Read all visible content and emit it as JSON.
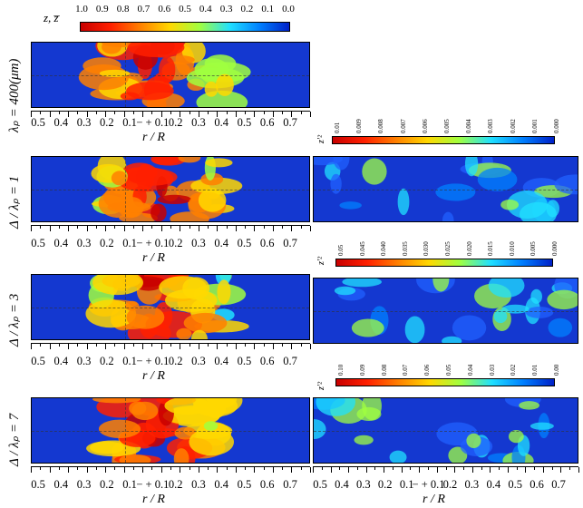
{
  "colorbars": {
    "main": {
      "label": "z, z̅",
      "ticks": [
        "1.0",
        "0.9",
        "0.8",
        "0.7",
        "0.6",
        "0.5",
        "0.4",
        "0.3",
        "0.2",
        "0.1",
        "0.0"
      ]
    },
    "panel1": {
      "label": "z′²",
      "ticks": [
        "0.01",
        "0.009",
        "0.008",
        "0.007",
        "0.006",
        "0.005",
        "0.004",
        "0.003",
        "0.002",
        "0.001",
        "0.000"
      ]
    },
    "panel2": {
      "label": "z′²",
      "ticks": [
        "0.05",
        "0.045",
        "0.040",
        "0.035",
        "0.030",
        "0.025",
        "0.020",
        "0.015",
        "0.010",
        "0.005",
        "0.000"
      ]
    },
    "panel3": {
      "label": "z′²",
      "ticks": [
        "0.10",
        "0.09",
        "0.08",
        "0.07",
        "0.06",
        "0.05",
        "0.04",
        "0.03",
        "0.02",
        "0.01",
        "0.00"
      ]
    },
    "colors": [
      "#c80000",
      "#ff2000",
      "#ff8000",
      "#ffd800",
      "#a0ff40",
      "#20e0ff",
      "#0080ff",
      "#0020c8"
    ]
  },
  "rows": [
    {
      "label": "λₚ = 400(μm)"
    },
    {
      "label": "Δ / λₚ = 1"
    },
    {
      "label": "Δ / λₚ = 3"
    },
    {
      "label": "Δ / λₚ = 7"
    }
  ],
  "axis": {
    "ticks": [
      "0.5",
      "0.4",
      "0.3",
      "0.2",
      "0.1",
      "− + 0.1",
      "0.2",
      "0.3",
      "0.4",
      "0.5",
      "0.6",
      "0.7"
    ],
    "title": "r / R"
  }
}
